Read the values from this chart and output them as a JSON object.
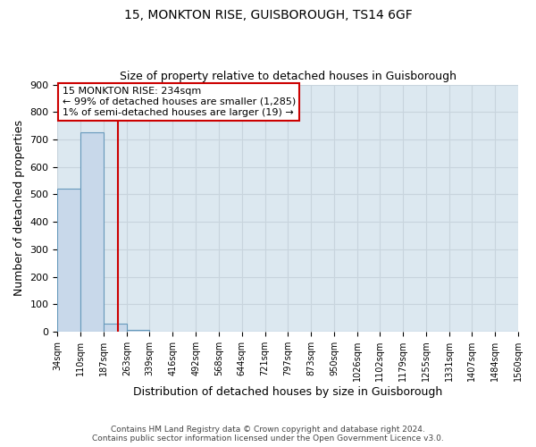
{
  "title1": "15, MONKTON RISE, GUISBOROUGH, TS14 6GF",
  "title2": "Size of property relative to detached houses in Guisborough",
  "xlabel": "Distribution of detached houses by size in Guisborough",
  "ylabel": "Number of detached properties",
  "footer1": "Contains HM Land Registry data © Crown copyright and database right 2024.",
  "footer2": "Contains public sector information licensed under the Open Government Licence v3.0.",
  "annotation_lines": [
    "15 MONKTON RISE: 234sqm",
    "← 99% of detached houses are smaller (1,285)",
    "1% of semi-detached houses are larger (19) →"
  ],
  "bin_edges": [
    34,
    110,
    187,
    263,
    339,
    416,
    492,
    568,
    644,
    721,
    797,
    873,
    950,
    1026,
    1102,
    1179,
    1255,
    1331,
    1407,
    1484,
    1560
  ],
  "bar_heights": [
    522,
    727,
    28,
    6,
    1,
    1,
    0,
    0,
    0,
    0,
    0,
    0,
    1,
    0,
    0,
    0,
    0,
    0,
    0,
    1
  ],
  "bar_color": "#c8d8ea",
  "bar_edge_color": "#6699bb",
  "red_line_x": 234,
  "annotation_box_color": "#ffffff",
  "annotation_box_edge_color": "#cc0000",
  "red_line_color": "#cc0000",
  "ylim": [
    0,
    900
  ],
  "xlim_min": 34,
  "xlim_max": 1560,
  "grid_color": "#c8d4dd",
  "bg_color": "#dce8f0",
  "yticks": [
    0,
    100,
    200,
    300,
    400,
    500,
    600,
    700,
    800,
    900
  ]
}
